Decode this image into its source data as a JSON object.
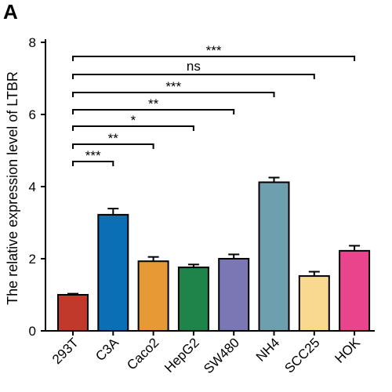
{
  "panel_label": "A",
  "chart_data": {
    "type": "bar",
    "categories": [
      "293T",
      "C3A",
      "Caco2",
      "HepG2",
      "SW480",
      "NH4",
      "SCC25",
      "HOK"
    ],
    "values": [
      1.0,
      3.22,
      1.93,
      1.76,
      2.0,
      4.12,
      1.52,
      2.22
    ],
    "errors": [
      0.03,
      0.17,
      0.12,
      0.08,
      0.12,
      0.13,
      0.12,
      0.14
    ],
    "colors": [
      "#c0392b",
      "#0a6fb5",
      "#e59a36",
      "#1e8449",
      "#7b77b5",
      "#6e9fae",
      "#f9d890",
      "#e8458c"
    ],
    "title": "",
    "xlabel": "",
    "ylabel": "The relative expression level of LTBR",
    "ylim": [
      0,
      8
    ],
    "yticks": [
      0,
      2,
      4,
      6,
      8
    ],
    "grid": false,
    "significance": [
      {
        "from": "293T",
        "to": "C3A",
        "label": "***"
      },
      {
        "from": "293T",
        "to": "Caco2",
        "label": "**"
      },
      {
        "from": "293T",
        "to": "HepG2",
        "label": "*"
      },
      {
        "from": "293T",
        "to": "SW480",
        "label": "**"
      },
      {
        "from": "293T",
        "to": "NH4",
        "label": "***"
      },
      {
        "from": "293T",
        "to": "SCC25",
        "label": "ns"
      },
      {
        "from": "293T",
        "to": "HOK",
        "label": "***"
      }
    ]
  }
}
